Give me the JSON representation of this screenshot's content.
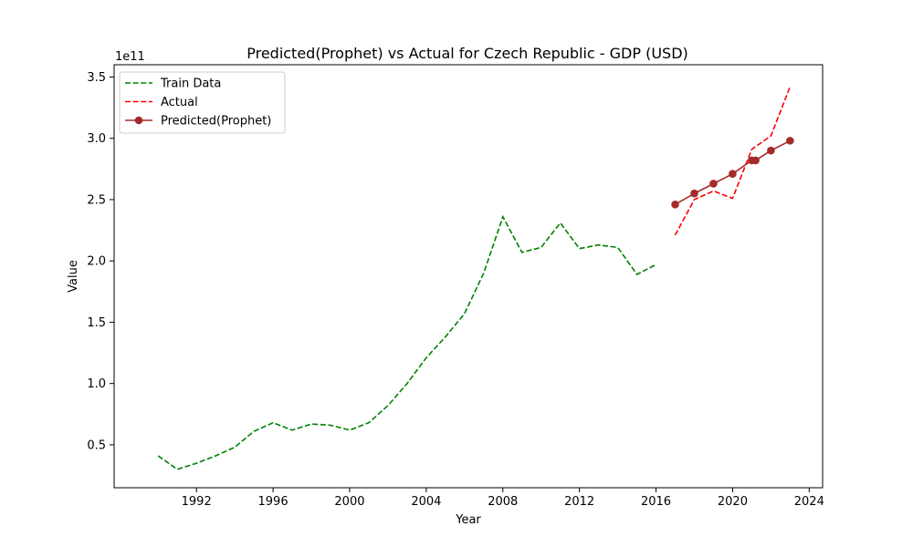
{
  "chart_data": {
    "type": "line",
    "title": "Predicted(Prophet) vs Actual for Czech Republic - GDP (USD)",
    "xlabel": "Year",
    "ylabel": "Value",
    "y_offset_label": "1e11",
    "xlim": [
      1987.7,
      2024.7
    ],
    "ylim": [
      0.15,
      3.6
    ],
    "x_ticks": [
      1992,
      1996,
      2000,
      2004,
      2008,
      2012,
      2016,
      2020,
      2024
    ],
    "y_ticks": [
      0.5,
      1.0,
      1.5,
      2.0,
      2.5,
      3.0,
      3.5
    ],
    "grid": false,
    "legend_position": "top-left",
    "series": [
      {
        "name": "Train Data",
        "color": "#008000",
        "style": "dashed",
        "x": [
          1990,
          1991,
          1992,
          1993,
          1994,
          1995,
          1996,
          1997,
          1998,
          1999,
          2000,
          2001,
          2002,
          2003,
          2004,
          2005,
          2006,
          2007,
          2008,
          2009,
          2010,
          2011,
          2012,
          2013,
          2014,
          2015,
          2016
        ],
        "y": [
          0.41,
          0.3,
          0.35,
          0.41,
          0.48,
          0.61,
          0.68,
          0.62,
          0.67,
          0.66,
          0.62,
          0.68,
          0.82,
          1.0,
          1.21,
          1.38,
          1.57,
          1.9,
          2.36,
          2.07,
          2.11,
          2.31,
          2.1,
          2.13,
          2.11,
          1.89,
          1.97
        ]
      },
      {
        "name": "Actual",
        "color": "#ff0000",
        "style": "dashed",
        "x": [
          2017,
          2018,
          2019,
          2020,
          2021,
          2022,
          2023
        ],
        "y": [
          2.21,
          2.5,
          2.57,
          2.51,
          2.91,
          3.02,
          3.42
        ]
      },
      {
        "name": "Predicted(Prophet)",
        "color": "#a52a2a",
        "style": "solid-marker",
        "x": [
          2017,
          2018,
          2019,
          2020,
          2021,
          2021.2,
          2022,
          2023
        ],
        "y": [
          2.46,
          2.55,
          2.63,
          2.71,
          2.82,
          2.82,
          2.9,
          2.98
        ]
      }
    ]
  }
}
